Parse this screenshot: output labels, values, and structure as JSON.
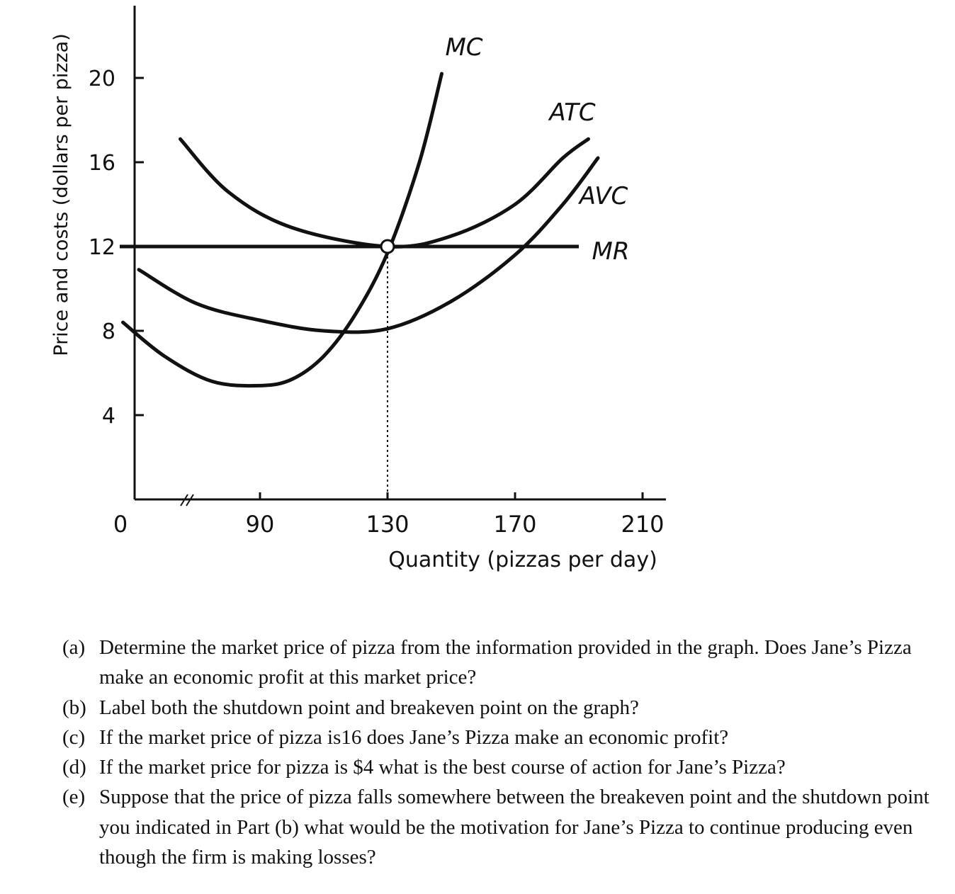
{
  "chart_data": {
    "type": "line",
    "xlabel": "Quantity (pizzas per day)",
    "ylabel": "Price and costs (dollars per pizza)",
    "origin_label": "0",
    "x_ticks": [
      90,
      130,
      170,
      210
    ],
    "y_ticks": [
      4,
      8,
      12,
      16,
      20
    ],
    "xlim": [
      45,
      215
    ],
    "ylim": [
      0,
      22
    ],
    "axis_break_x": true,
    "series": [
      {
        "name": "MC",
        "points": [
          [
            47,
            8.4
          ],
          [
            60,
            6.8
          ],
          [
            75,
            5.6
          ],
          [
            90,
            5.4
          ],
          [
            100,
            5.7
          ],
          [
            110,
            6.8
          ],
          [
            120,
            8.8
          ],
          [
            130,
            11.7
          ],
          [
            140,
            16.0
          ],
          [
            147,
            20.2
          ]
        ]
      },
      {
        "name": "ATC",
        "points": [
          [
            65,
            17.1
          ],
          [
            80,
            14.6
          ],
          [
            100,
            12.9
          ],
          [
            130,
            12.0
          ],
          [
            150,
            12.5
          ],
          [
            170,
            14.0
          ],
          [
            185,
            16.2
          ],
          [
            193,
            17.1
          ]
        ]
      },
      {
        "name": "AVC",
        "points": [
          [
            52,
            10.9
          ],
          [
            70,
            9.3
          ],
          [
            90,
            8.5
          ],
          [
            110,
            8.0
          ],
          [
            130,
            8.1
          ],
          [
            150,
            9.4
          ],
          [
            170,
            11.6
          ],
          [
            185,
            14.0
          ],
          [
            196,
            16.2
          ]
        ]
      },
      {
        "name": "MR",
        "points": [
          [
            46,
            12
          ],
          [
            190,
            12
          ]
        ]
      }
    ],
    "marked_point": {
      "x": 130,
      "y": 12
    },
    "dashed_drop_line_x": 130,
    "line_color": "#111111"
  },
  "questions": [
    {
      "letter": "(a)",
      "text": "Determine the market price of pizza from the information provided in the graph. Does Jane’s Pizza make an economic profit at this market price?"
    },
    {
      "letter": "(b)",
      "text": "Label both the shutdown point and breakeven point on the graph?"
    },
    {
      "letter": "(c)",
      "text": "If the market price of pizza is16 does Jane’s Pizza make an economic profit?"
    },
    {
      "letter": "(d)",
      "text": "If the market price for pizza is $4 what is the best course of action for Jane’s Pizza?"
    },
    {
      "letter": "(e)",
      "text": "Suppose that the price of pizza falls somewhere between the breakeven point and the shutdown point you indicated in Part (b) what would be the motivation for Jane’s Pizza to continue producing even though the firm is making losses?"
    }
  ]
}
